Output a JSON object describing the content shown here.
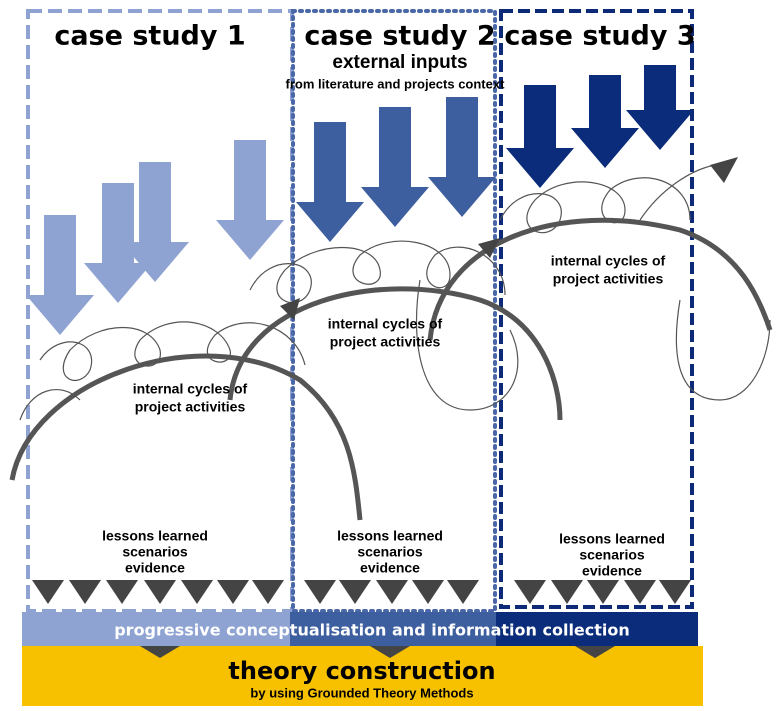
{
  "title": "external inputs",
  "subtitle": "from literature and projects context",
  "cases": [
    {
      "title": "case study 1",
      "cycles": [
        "internal cycles of",
        "project activities"
      ],
      "outcomes": [
        "lessons learned",
        "scenarios",
        "evidence"
      ]
    },
    {
      "title": "case study 2",
      "cycles": [
        "internal cycles of",
        "project activities"
      ],
      "outcomes": [
        "lessons learned",
        "scenarios",
        "evidence"
      ]
    },
    {
      "title": "case study 3",
      "cycles": [
        "internal cycles of",
        "project activities"
      ],
      "outcomes": [
        "lessons learned",
        "scenarios",
        "evidence"
      ]
    }
  ],
  "bar": "progressive conceptualisation and information collection",
  "result": {
    "title": "theory construction",
    "subtitle": "by using Grounded Theory Methods"
  }
}
